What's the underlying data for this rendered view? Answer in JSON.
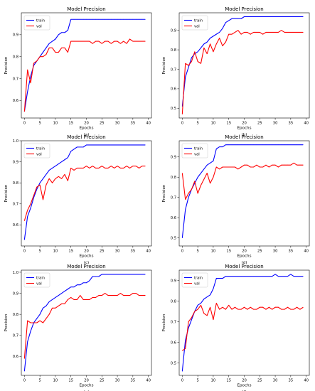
{
  "chart_data": [
    {
      "type": "line",
      "panel_label": "(a)",
      "title": "Model Precision",
      "xlabel": "Epochs",
      "ylabel": "Precision",
      "xlim": [
        -1,
        41
      ],
      "ylim": [
        0.52,
        1.0
      ],
      "xticks": [
        0,
        5,
        10,
        15,
        20,
        25,
        30,
        35,
        40
      ],
      "yticks": [
        0.6,
        0.7,
        0.8,
        0.9
      ],
      "legend": "top-left",
      "grid": false,
      "x": [
        0,
        1,
        2,
        3,
        4,
        5,
        6,
        7,
        8,
        9,
        10,
        11,
        12,
        13,
        14,
        15,
        16,
        17,
        18,
        19,
        20,
        21,
        22,
        23,
        24,
        25,
        26,
        27,
        28,
        29,
        30,
        31,
        32,
        33,
        34,
        35,
        36,
        37,
        38,
        39
      ],
      "series": [
        {
          "name": "train",
          "color": "#0000ff",
          "values": [
            0.55,
            0.64,
            0.71,
            0.76,
            0.78,
            0.8,
            0.82,
            0.84,
            0.86,
            0.87,
            0.88,
            0.9,
            0.91,
            0.91,
            0.92,
            0.97,
            0.97,
            0.97,
            0.97,
            0.97,
            0.97,
            0.97,
            0.97,
            0.97,
            0.97,
            0.97,
            0.97,
            0.97,
            0.97,
            0.97,
            0.97,
            0.97,
            0.97,
            0.97,
            0.97,
            0.97,
            0.97,
            0.97,
            0.97,
            0.97
          ]
        },
        {
          "name": "val",
          "color": "#ff0000",
          "values": [
            0.55,
            0.74,
            0.68,
            0.77,
            0.78,
            0.8,
            0.8,
            0.81,
            0.84,
            0.84,
            0.82,
            0.82,
            0.84,
            0.84,
            0.82,
            0.87,
            0.87,
            0.87,
            0.87,
            0.87,
            0.87,
            0.87,
            0.86,
            0.87,
            0.87,
            0.86,
            0.87,
            0.87,
            0.86,
            0.87,
            0.87,
            0.86,
            0.87,
            0.86,
            0.88,
            0.87,
            0.87,
            0.87,
            0.87,
            0.87
          ]
        }
      ]
    },
    {
      "type": "line",
      "panel_label": "(b)",
      "title": "Model Precision",
      "xlabel": "Epochs",
      "ylabel": "Precision",
      "xlim": [
        -1,
        41
      ],
      "ylim": [
        0.45,
        0.99
      ],
      "xticks": [
        0,
        5,
        10,
        15,
        20,
        25,
        30,
        35,
        40
      ],
      "yticks": [
        0.5,
        0.6,
        0.7,
        0.8,
        0.9
      ],
      "legend": "top-left",
      "grid": false,
      "x": [
        0,
        1,
        2,
        3,
        4,
        5,
        6,
        7,
        8,
        9,
        10,
        11,
        12,
        13,
        14,
        15,
        16,
        17,
        18,
        19,
        20,
        21,
        22,
        23,
        24,
        25,
        26,
        27,
        28,
        29,
        30,
        31,
        32,
        33,
        34,
        35,
        36,
        37,
        38,
        39
      ],
      "series": [
        {
          "name": "train",
          "color": "#0000ff",
          "values": [
            0.51,
            0.66,
            0.71,
            0.76,
            0.78,
            0.79,
            0.81,
            0.83,
            0.84,
            0.86,
            0.87,
            0.88,
            0.89,
            0.91,
            0.94,
            0.95,
            0.96,
            0.96,
            0.96,
            0.96,
            0.97,
            0.97,
            0.97,
            0.97,
            0.97,
            0.97,
            0.97,
            0.97,
            0.97,
            0.97,
            0.97,
            0.97,
            0.97,
            0.97,
            0.97,
            0.97,
            0.97,
            0.97,
            0.97,
            0.97
          ]
        },
        {
          "name": "val",
          "color": "#ff0000",
          "values": [
            0.47,
            0.73,
            0.72,
            0.74,
            0.79,
            0.74,
            0.73,
            0.81,
            0.78,
            0.83,
            0.79,
            0.83,
            0.86,
            0.82,
            0.84,
            0.88,
            0.88,
            0.89,
            0.9,
            0.88,
            0.89,
            0.89,
            0.88,
            0.89,
            0.89,
            0.89,
            0.88,
            0.89,
            0.89,
            0.89,
            0.89,
            0.89,
            0.9,
            0.89,
            0.89,
            0.89,
            0.89,
            0.89,
            0.89,
            0.89
          ]
        }
      ]
    },
    {
      "type": "line",
      "panel_label": "(c)",
      "title": "Model Precision",
      "xlabel": "Epochs",
      "ylabel": "Precision",
      "xlim": [
        -1,
        41
      ],
      "ylim": [
        0.5,
        1.0
      ],
      "xticks": [
        0,
        5,
        10,
        15,
        20,
        25,
        30,
        35,
        40
      ],
      "yticks": [
        0.6,
        0.7,
        0.8,
        0.9,
        1.0
      ],
      "legend": "top-left",
      "grid": false,
      "x": [
        0,
        1,
        2,
        3,
        4,
        5,
        6,
        7,
        8,
        9,
        10,
        11,
        12,
        13,
        14,
        15,
        16,
        17,
        18,
        19,
        20,
        21,
        22,
        23,
        24,
        25,
        26,
        27,
        28,
        29,
        30,
        31,
        32,
        33,
        34,
        35,
        36,
        37,
        38,
        39
      ],
      "series": [
        {
          "name": "train",
          "color": "#0000ff",
          "values": [
            0.53,
            0.64,
            0.68,
            0.73,
            0.77,
            0.8,
            0.82,
            0.84,
            0.86,
            0.87,
            0.88,
            0.89,
            0.9,
            0.91,
            0.92,
            0.95,
            0.96,
            0.97,
            0.97,
            0.97,
            0.98,
            0.98,
            0.98,
            0.98,
            0.98,
            0.98,
            0.98,
            0.98,
            0.98,
            0.98,
            0.98,
            0.98,
            0.98,
            0.98,
            0.98,
            0.98,
            0.98,
            0.98,
            0.98,
            0.98
          ]
        },
        {
          "name": "val",
          "color": "#ff0000",
          "values": [
            0.62,
            0.67,
            0.7,
            0.74,
            0.78,
            0.79,
            0.72,
            0.79,
            0.82,
            0.8,
            0.82,
            0.83,
            0.82,
            0.84,
            0.81,
            0.87,
            0.86,
            0.87,
            0.87,
            0.87,
            0.88,
            0.87,
            0.88,
            0.87,
            0.87,
            0.88,
            0.87,
            0.87,
            0.88,
            0.87,
            0.88,
            0.87,
            0.87,
            0.88,
            0.87,
            0.88,
            0.88,
            0.87,
            0.88,
            0.88
          ]
        }
      ]
    },
    {
      "type": "line",
      "panel_label": "(d)",
      "title": "Model Precision",
      "xlabel": "Epochs",
      "ylabel": "Precision",
      "xlim": [
        -1,
        41
      ],
      "ylim": [
        0.46,
        0.98
      ],
      "xticks": [
        0,
        5,
        10,
        15,
        20,
        25,
        30,
        35,
        40
      ],
      "yticks": [
        0.5,
        0.6,
        0.7,
        0.8,
        0.9
      ],
      "legend": "top-left",
      "grid": false,
      "x": [
        0,
        1,
        2,
        3,
        4,
        5,
        6,
        7,
        8,
        9,
        10,
        11,
        12,
        13,
        14,
        15,
        16,
        17,
        18,
        19,
        20,
        21,
        22,
        23,
        24,
        25,
        26,
        27,
        28,
        29,
        30,
        31,
        32,
        33,
        34,
        35,
        36,
        37,
        38,
        39
      ],
      "series": [
        {
          "name": "train",
          "color": "#0000ff",
          "values": [
            0.5,
            0.64,
            0.7,
            0.74,
            0.77,
            0.8,
            0.82,
            0.84,
            0.86,
            0.87,
            0.88,
            0.94,
            0.95,
            0.95,
            0.96,
            0.96,
            0.96,
            0.96,
            0.96,
            0.96,
            0.96,
            0.96,
            0.96,
            0.96,
            0.96,
            0.96,
            0.96,
            0.96,
            0.96,
            0.96,
            0.96,
            0.96,
            0.96,
            0.96,
            0.96,
            0.96,
            0.96,
            0.96,
            0.96,
            0.96
          ]
        },
        {
          "name": "val",
          "color": "#ff0000",
          "values": [
            0.82,
            0.69,
            0.72,
            0.74,
            0.78,
            0.72,
            0.76,
            0.79,
            0.82,
            0.77,
            0.8,
            0.85,
            0.84,
            0.85,
            0.85,
            0.85,
            0.85,
            0.85,
            0.84,
            0.85,
            0.86,
            0.86,
            0.85,
            0.85,
            0.86,
            0.85,
            0.85,
            0.86,
            0.85,
            0.86,
            0.86,
            0.85,
            0.86,
            0.86,
            0.86,
            0.86,
            0.87,
            0.86,
            0.86,
            0.86
          ]
        }
      ]
    },
    {
      "type": "line",
      "panel_label": "(e)",
      "title": "Model Precision",
      "xlabel": "Epochs",
      "ylabel": "Precision",
      "xlim": [
        -1,
        41
      ],
      "ylim": [
        0.51,
        1.01
      ],
      "xticks": [
        0,
        5,
        10,
        15,
        20,
        25,
        30,
        35,
        40
      ],
      "yticks": [
        0.6,
        0.7,
        0.8,
        0.9,
        1.0
      ],
      "legend": "top-left",
      "grid": false,
      "x": [
        0,
        1,
        2,
        3,
        4,
        5,
        6,
        7,
        8,
        9,
        10,
        11,
        12,
        13,
        14,
        15,
        16,
        17,
        18,
        19,
        20,
        21,
        22,
        23,
        24,
        25,
        26,
        27,
        28,
        29,
        30,
        31,
        32,
        33,
        34,
        35,
        36,
        37,
        38,
        39
      ],
      "series": [
        {
          "name": "train",
          "color": "#0000ff",
          "values": [
            0.53,
            0.67,
            0.72,
            0.76,
            0.78,
            0.8,
            0.83,
            0.84,
            0.86,
            0.87,
            0.88,
            0.89,
            0.9,
            0.91,
            0.92,
            0.93,
            0.93,
            0.94,
            0.94,
            0.95,
            0.95,
            0.96,
            0.98,
            0.98,
            0.98,
            0.99,
            0.99,
            0.99,
            0.99,
            0.99,
            0.99,
            0.99,
            0.99,
            0.99,
            0.99,
            0.99,
            0.99,
            0.99,
            0.99,
            0.99
          ]
        },
        {
          "name": "val",
          "color": "#ff0000",
          "values": [
            0.59,
            0.77,
            0.76,
            0.76,
            0.76,
            0.77,
            0.76,
            0.78,
            0.8,
            0.83,
            0.83,
            0.84,
            0.85,
            0.85,
            0.87,
            0.88,
            0.87,
            0.87,
            0.89,
            0.87,
            0.87,
            0.87,
            0.88,
            0.88,
            0.89,
            0.89,
            0.9,
            0.89,
            0.89,
            0.89,
            0.89,
            0.9,
            0.89,
            0.89,
            0.89,
            0.9,
            0.9,
            0.89,
            0.89,
            0.89
          ]
        }
      ]
    },
    {
      "type": "line",
      "panel_label": "(f)",
      "title": "Model Precision",
      "xlabel": "Epochs",
      "ylabel": "Precision",
      "xlim": [
        -1,
        41
      ],
      "ylim": [
        0.44,
        0.95
      ],
      "xticks": [
        0,
        5,
        10,
        15,
        20,
        25,
        30,
        35,
        40
      ],
      "yticks": [
        0.5,
        0.6,
        0.7,
        0.8,
        0.9
      ],
      "legend": "top-left",
      "grid": false,
      "x": [
        0,
        1,
        2,
        3,
        4,
        5,
        6,
        7,
        8,
        9,
        10,
        11,
        12,
        13,
        14,
        15,
        16,
        17,
        18,
        19,
        20,
        21,
        22,
        23,
        24,
        25,
        26,
        27,
        28,
        29,
        30,
        31,
        32,
        33,
        34,
        35,
        36,
        37,
        38,
        39
      ],
      "series": [
        {
          "name": "train",
          "color": "#0000ff",
          "values": [
            0.46,
            0.61,
            0.67,
            0.71,
            0.75,
            0.78,
            0.79,
            0.81,
            0.82,
            0.83,
            0.86,
            0.91,
            0.91,
            0.91,
            0.92,
            0.92,
            0.92,
            0.92,
            0.92,
            0.92,
            0.92,
            0.92,
            0.92,
            0.92,
            0.92,
            0.92,
            0.92,
            0.92,
            0.92,
            0.92,
            0.93,
            0.92,
            0.92,
            0.92,
            0.92,
            0.93,
            0.92,
            0.92,
            0.92,
            0.92
          ]
        },
        {
          "name": "val",
          "color": "#ff0000",
          "values": [
            0.56,
            0.57,
            0.7,
            0.72,
            0.75,
            0.76,
            0.78,
            0.74,
            0.73,
            0.77,
            0.71,
            0.79,
            0.76,
            0.77,
            0.76,
            0.78,
            0.76,
            0.77,
            0.76,
            0.76,
            0.77,
            0.76,
            0.77,
            0.76,
            0.76,
            0.77,
            0.77,
            0.76,
            0.77,
            0.76,
            0.77,
            0.77,
            0.76,
            0.76,
            0.77,
            0.76,
            0.76,
            0.77,
            0.76,
            0.77
          ]
        }
      ]
    }
  ]
}
